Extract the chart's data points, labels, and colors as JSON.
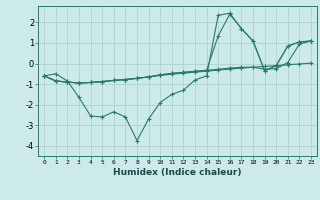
{
  "xlabel": "Humidex (Indice chaleur)",
  "background_color": "#cceaea",
  "grid_color": "#aacccc",
  "line_color": "#2a7a6a",
  "xlim": [
    -0.5,
    23.5
  ],
  "ylim": [
    -4.5,
    2.8
  ],
  "yticks": [
    -4,
    -3,
    -2,
    -1,
    0,
    1,
    2
  ],
  "xticks": [
    0,
    1,
    2,
    3,
    4,
    5,
    6,
    7,
    8,
    9,
    10,
    11,
    12,
    13,
    14,
    15,
    16,
    17,
    18,
    19,
    20,
    21,
    22,
    23
  ],
  "series": [
    [
      -0.6,
      -0.5,
      -0.85,
      -1.65,
      -2.55,
      -2.6,
      -2.35,
      -2.6,
      -3.75,
      -2.7,
      -1.9,
      -1.5,
      -1.3,
      -0.8,
      -0.6,
      2.35,
      2.45,
      1.7,
      1.1,
      -0.35,
      -0.1,
      0.85,
      1.05,
      1.1
    ],
    [
      -0.6,
      -0.85,
      -0.9,
      -0.95,
      -0.92,
      -0.88,
      -0.82,
      -0.78,
      -0.72,
      -0.65,
      -0.58,
      -0.52,
      -0.47,
      -0.42,
      -0.37,
      -0.32,
      -0.27,
      -0.22,
      -0.18,
      -0.14,
      -0.1,
      -0.06,
      -0.02,
      0.02
    ],
    [
      -0.6,
      -0.85,
      -0.9,
      -0.95,
      -0.92,
      -0.88,
      -0.82,
      -0.78,
      -0.72,
      -0.65,
      -0.55,
      -0.48,
      -0.43,
      -0.38,
      -0.33,
      -0.28,
      -0.22,
      -0.18,
      -0.18,
      -0.28,
      -0.25,
      0.05,
      0.95,
      1.1
    ],
    [
      -0.6,
      -0.85,
      -0.9,
      -0.95,
      -0.92,
      -0.88,
      -0.82,
      -0.78,
      -0.72,
      -0.65,
      -0.55,
      -0.48,
      -0.43,
      -0.38,
      -0.33,
      1.35,
      2.4,
      1.7,
      1.1,
      -0.35,
      -0.1,
      0.85,
      1.05,
      1.1
    ]
  ]
}
